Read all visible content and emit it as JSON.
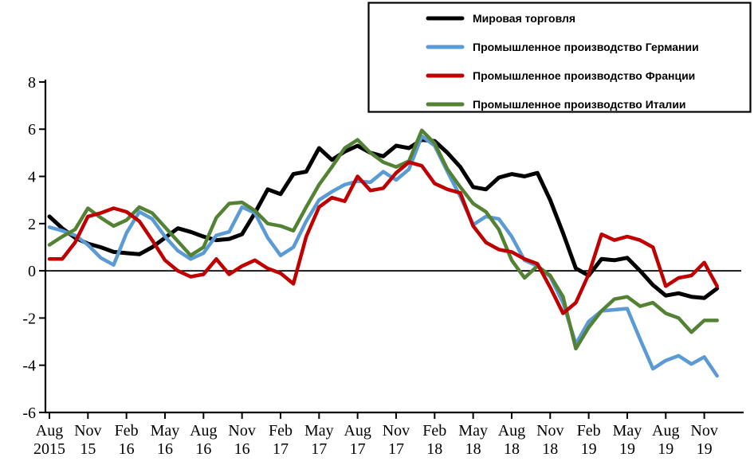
{
  "chart_data": {
    "type": "line",
    "title": "",
    "xlabel": "",
    "ylabel": "",
    "ylim": [
      -6,
      8
    ],
    "y_ticks": [
      8,
      6,
      4,
      2,
      0,
      -2,
      -4,
      -6
    ],
    "grid": false,
    "zero_line": true,
    "legend_position": "top-right",
    "x_tick_labels": [
      {
        "month": "Aug",
        "year": "2015"
      },
      {
        "month": "Nov",
        "year": "15"
      },
      {
        "month": "Feb",
        "year": "16"
      },
      {
        "month": "May",
        "year": "16"
      },
      {
        "month": "Aug",
        "year": "16"
      },
      {
        "month": "Nov",
        "year": "16"
      },
      {
        "month": "Feb",
        "year": "17"
      },
      {
        "month": "May",
        "year": "17"
      },
      {
        "month": "Aug",
        "year": "17"
      },
      {
        "month": "Nov",
        "year": "17"
      },
      {
        "month": "Feb",
        "year": "18"
      },
      {
        "month": "May",
        "year": "18"
      },
      {
        "month": "Aug",
        "year": "18"
      },
      {
        "month": "Nov",
        "year": "18"
      },
      {
        "month": "Feb",
        "year": "19"
      },
      {
        "month": "May",
        "year": "19"
      },
      {
        "month": "Aug",
        "year": "19"
      },
      {
        "month": "Nov",
        "year": "19"
      }
    ],
    "x_months": [
      "Aug-15",
      "Sep-15",
      "Oct-15",
      "Nov-15",
      "Dec-15",
      "Jan-16",
      "Feb-16",
      "Mar-16",
      "Apr-16",
      "May-16",
      "Jun-16",
      "Jul-16",
      "Aug-16",
      "Sep-16",
      "Oct-16",
      "Nov-16",
      "Dec-16",
      "Jan-17",
      "Feb-17",
      "Mar-17",
      "Apr-17",
      "May-17",
      "Jun-17",
      "Jul-17",
      "Aug-17",
      "Sep-17",
      "Oct-17",
      "Nov-17",
      "Dec-17",
      "Jan-18",
      "Feb-18",
      "Mar-18",
      "Apr-18",
      "May-18",
      "Jun-18",
      "Jul-18",
      "Aug-18",
      "Sep-18",
      "Oct-18",
      "Nov-18",
      "Dec-18",
      "Jan-19",
      "Feb-19",
      "Mar-19",
      "Apr-19",
      "May-19",
      "Jun-19",
      "Jul-19",
      "Aug-19",
      "Sep-19",
      "Oct-19",
      "Nov-19",
      "Dec-19"
    ],
    "series": [
      {
        "id": "world-trade",
        "name": "Мировая торговля",
        "color": "#000000",
        "stroke_width": 5,
        "values": [
          2.3,
          1.8,
          1.4,
          1.15,
          1.0,
          0.8,
          0.75,
          0.7,
          1.0,
          1.4,
          1.8,
          1.65,
          1.45,
          1.3,
          1.35,
          1.55,
          2.45,
          3.45,
          3.25,
          4.1,
          4.2,
          5.2,
          4.7,
          5.05,
          5.3,
          5.0,
          4.85,
          5.3,
          5.2,
          5.55,
          5.5,
          5.0,
          4.4,
          3.55,
          3.45,
          3.95,
          4.1,
          4.0,
          4.15,
          3.0,
          1.6,
          0.1,
          -0.2,
          0.5,
          0.45,
          0.55,
          0.0,
          -0.6,
          -1.05,
          -0.95,
          -1.1,
          -1.15,
          -0.75
        ]
      },
      {
        "id": "germany-ip",
        "name": "Промышленное производство Германии",
        "color": "#5B9BD5",
        "stroke_width": 4.5,
        "values": [
          1.85,
          1.7,
          1.5,
          1.1,
          0.55,
          0.25,
          1.6,
          2.5,
          2.2,
          1.45,
          0.85,
          0.5,
          0.75,
          1.5,
          1.65,
          2.7,
          2.45,
          1.4,
          0.65,
          1.0,
          2.1,
          3.0,
          3.35,
          3.65,
          3.8,
          3.75,
          4.2,
          3.85,
          4.3,
          5.7,
          5.3,
          4.2,
          3.15,
          1.95,
          2.3,
          2.2,
          1.45,
          0.45,
          0.2,
          -0.25,
          -1.35,
          -3.1,
          -2.15,
          -1.7,
          -1.65,
          -1.6,
          -2.9,
          -4.15,
          -3.8,
          -3.6,
          -3.95,
          -3.65,
          -4.45
        ]
      },
      {
        "id": "france-ip",
        "name": "Промышленное производство Франции",
        "color": "#C00000",
        "stroke_width": 4.5,
        "values": [
          0.5,
          0.5,
          1.2,
          2.3,
          2.45,
          2.65,
          2.5,
          2.1,
          1.3,
          0.45,
          0.0,
          -0.25,
          -0.15,
          0.5,
          -0.15,
          0.2,
          0.45,
          0.1,
          -0.1,
          -0.55,
          1.45,
          2.7,
          3.1,
          2.95,
          4.0,
          3.4,
          3.5,
          4.15,
          4.6,
          4.45,
          3.7,
          3.45,
          3.3,
          1.9,
          1.2,
          0.9,
          0.8,
          0.5,
          0.3,
          -0.7,
          -1.8,
          -1.35,
          -0.15,
          1.55,
          1.3,
          1.45,
          1.3,
          1.0,
          -0.65,
          -0.3,
          -0.2,
          0.35,
          -0.65
        ]
      },
      {
        "id": "italy-ip",
        "name": "Промышленное производство Италии",
        "color": "#548235",
        "stroke_width": 4.5,
        "values": [
          1.1,
          1.45,
          1.75,
          2.65,
          2.25,
          1.9,
          2.15,
          2.7,
          2.45,
          1.85,
          1.25,
          0.65,
          1.0,
          2.25,
          2.85,
          2.9,
          2.55,
          2.0,
          1.9,
          1.7,
          2.7,
          3.65,
          4.4,
          5.2,
          5.55,
          5.0,
          4.6,
          4.4,
          4.65,
          5.95,
          5.4,
          4.3,
          3.55,
          2.85,
          2.5,
          1.75,
          0.45,
          -0.3,
          0.2,
          -0.2,
          -1.1,
          -3.3,
          -2.4,
          -1.7,
          -1.2,
          -1.1,
          -1.5,
          -1.35,
          -1.8,
          -2.0,
          -2.6,
          -2.1,
          -2.1
        ]
      }
    ],
    "draw_order": [
      0,
      1,
      3,
      2
    ]
  }
}
